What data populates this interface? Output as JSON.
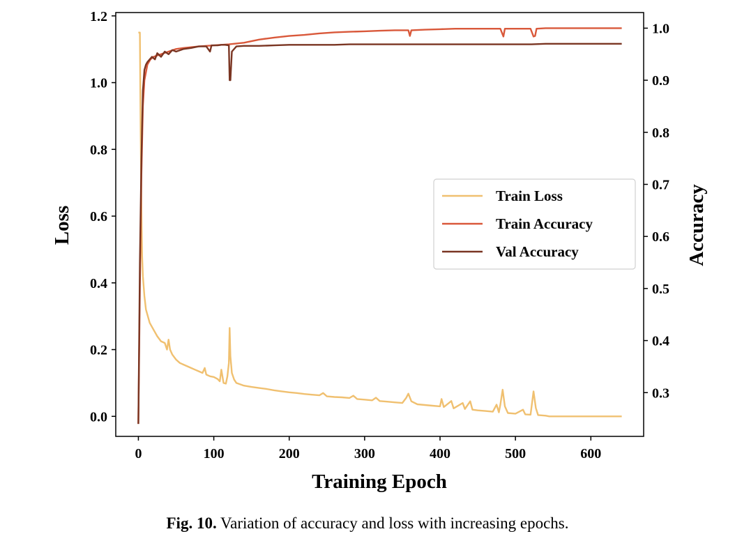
{
  "caption": {
    "label": "Fig. 10.",
    "text": "Variation of accuracy and loss with increasing epochs."
  },
  "chart_data": {
    "type": "line",
    "xlabel": "Training Epoch",
    "ylabel_left": "Loss",
    "ylabel_right": "Accuracy",
    "xlim": [
      -30,
      670
    ],
    "ylim_left": [
      -0.06,
      1.21
    ],
    "ylim_right": [
      0.216,
      1.03
    ],
    "xticks": [
      "0",
      "100",
      "200",
      "300",
      "400",
      "500",
      "600"
    ],
    "yticks_left": [
      "0.0",
      "0.2",
      "0.4",
      "0.6",
      "0.8",
      "1.0",
      "1.2"
    ],
    "yticks_right": [
      "0.3",
      "0.4",
      "0.5",
      "0.6",
      "0.7",
      "0.8",
      "0.9",
      "1.0"
    ],
    "grid": false,
    "legend_position": "center-right",
    "series": [
      {
        "name": "Train Loss",
        "axis": "left",
        "color": "#F0C070",
        "points": [
          [
            0,
            1.15
          ],
          [
            2,
            1.15
          ],
          [
            3,
            0.85
          ],
          [
            4,
            0.62
          ],
          [
            5,
            0.48
          ],
          [
            6,
            0.42
          ],
          [
            8,
            0.36
          ],
          [
            10,
            0.32
          ],
          [
            15,
            0.28
          ],
          [
            20,
            0.26
          ],
          [
            25,
            0.24
          ],
          [
            30,
            0.225
          ],
          [
            35,
            0.22
          ],
          [
            38,
            0.2
          ],
          [
            40,
            0.23
          ],
          [
            42,
            0.2
          ],
          [
            45,
            0.185
          ],
          [
            50,
            0.17
          ],
          [
            55,
            0.16
          ],
          [
            60,
            0.155
          ],
          [
            65,
            0.15
          ],
          [
            70,
            0.145
          ],
          [
            75,
            0.14
          ],
          [
            80,
            0.135
          ],
          [
            85,
            0.13
          ],
          [
            88,
            0.145
          ],
          [
            90,
            0.125
          ],
          [
            95,
            0.12
          ],
          [
            100,
            0.118
          ],
          [
            105,
            0.112
          ],
          [
            108,
            0.105
          ],
          [
            110,
            0.14
          ],
          [
            113,
            0.1
          ],
          [
            116,
            0.098
          ],
          [
            118,
            0.12
          ],
          [
            120,
            0.16
          ],
          [
            121,
            0.265
          ],
          [
            122,
            0.18
          ],
          [
            124,
            0.13
          ],
          [
            127,
            0.11
          ],
          [
            130,
            0.1
          ],
          [
            140,
            0.092
          ],
          [
            150,
            0.088
          ],
          [
            160,
            0.085
          ],
          [
            170,
            0.082
          ],
          [
            180,
            0.078
          ],
          [
            190,
            0.075
          ],
          [
            200,
            0.072
          ],
          [
            210,
            0.07
          ],
          [
            220,
            0.067
          ],
          [
            230,
            0.065
          ],
          [
            240,
            0.063
          ],
          [
            245,
            0.07
          ],
          [
            250,
            0.06
          ],
          [
            260,
            0.058
          ],
          [
            270,
            0.057
          ],
          [
            280,
            0.055
          ],
          [
            285,
            0.062
          ],
          [
            290,
            0.052
          ],
          [
            300,
            0.05
          ],
          [
            310,
            0.048
          ],
          [
            315,
            0.056
          ],
          [
            320,
            0.046
          ],
          [
            330,
            0.044
          ],
          [
            340,
            0.042
          ],
          [
            350,
            0.04
          ],
          [
            355,
            0.055
          ],
          [
            358,
            0.068
          ],
          [
            362,
            0.045
          ],
          [
            370,
            0.036
          ],
          [
            380,
            0.034
          ],
          [
            390,
            0.032
          ],
          [
            400,
            0.03
          ],
          [
            402,
            0.052
          ],
          [
            405,
            0.028
          ],
          [
            415,
            0.046
          ],
          [
            418,
            0.024
          ],
          [
            430,
            0.04
          ],
          [
            433,
            0.022
          ],
          [
            440,
            0.045
          ],
          [
            443,
            0.02
          ],
          [
            450,
            0.018
          ],
          [
            460,
            0.016
          ],
          [
            470,
            0.014
          ],
          [
            475,
            0.035
          ],
          [
            478,
            0.012
          ],
          [
            480,
            0.035
          ],
          [
            483,
            0.08
          ],
          [
            486,
            0.03
          ],
          [
            490,
            0.01
          ],
          [
            500,
            0.008
          ],
          [
            510,
            0.02
          ],
          [
            513,
            0.006
          ],
          [
            520,
            0.005
          ],
          [
            524,
            0.075
          ],
          [
            527,
            0.025
          ],
          [
            530,
            0.004
          ],
          [
            540,
            0.002
          ],
          [
            545,
            0.0
          ],
          [
            600,
            0.0
          ],
          [
            641,
            0.0
          ]
        ]
      },
      {
        "name": "Train Accuracy",
        "axis": "right",
        "color": "#D9583A",
        "points": [
          [
            0,
            0.24
          ],
          [
            2,
            0.5
          ],
          [
            4,
            0.72
          ],
          [
            6,
            0.85
          ],
          [
            8,
            0.9
          ],
          [
            12,
            0.93
          ],
          [
            16,
            0.94
          ],
          [
            20,
            0.945
          ],
          [
            30,
            0.95
          ],
          [
            40,
            0.955
          ],
          [
            50,
            0.96
          ],
          [
            60,
            0.962
          ],
          [
            80,
            0.965
          ],
          [
            100,
            0.967
          ],
          [
            110,
            0.968
          ],
          [
            120,
            0.969
          ],
          [
            140,
            0.972
          ],
          [
            160,
            0.978
          ],
          [
            180,
            0.982
          ],
          [
            200,
            0.985
          ],
          [
            220,
            0.987
          ],
          [
            240,
            0.99
          ],
          [
            260,
            0.992
          ],
          [
            280,
            0.993
          ],
          [
            300,
            0.994
          ],
          [
            320,
            0.995
          ],
          [
            340,
            0.996
          ],
          [
            358,
            0.996
          ],
          [
            360,
            0.985
          ],
          [
            362,
            0.996
          ],
          [
            380,
            0.997
          ],
          [
            400,
            0.998
          ],
          [
            420,
            0.999
          ],
          [
            440,
            0.999
          ],
          [
            460,
            0.999
          ],
          [
            480,
            0.999
          ],
          [
            484,
            0.984
          ],
          [
            486,
            0.999
          ],
          [
            500,
            0.999
          ],
          [
            520,
            0.999
          ],
          [
            524,
            0.984
          ],
          [
            526,
            0.985
          ],
          [
            528,
            0.999
          ],
          [
            540,
            1.0
          ],
          [
            600,
            1.0
          ],
          [
            641,
            1.0
          ]
        ]
      },
      {
        "name": "Val Accuracy",
        "axis": "right",
        "color": "#7A3522",
        "points": [
          [
            0,
            0.24
          ],
          [
            2,
            0.55
          ],
          [
            4,
            0.75
          ],
          [
            6,
            0.88
          ],
          [
            8,
            0.92
          ],
          [
            10,
            0.93
          ],
          [
            12,
            0.935
          ],
          [
            15,
            0.94
          ],
          [
            18,
            0.945
          ],
          [
            22,
            0.94
          ],
          [
            25,
            0.952
          ],
          [
            30,
            0.945
          ],
          [
            35,
            0.955
          ],
          [
            40,
            0.95
          ],
          [
            45,
            0.958
          ],
          [
            50,
            0.955
          ],
          [
            60,
            0.96
          ],
          [
            70,
            0.962
          ],
          [
            80,
            0.965
          ],
          [
            90,
            0.965
          ],
          [
            95,
            0.955
          ],
          [
            97,
            0.967
          ],
          [
            105,
            0.967
          ],
          [
            110,
            0.968
          ],
          [
            115,
            0.968
          ],
          [
            120,
            0.967
          ],
          [
            121,
            0.9
          ],
          [
            122,
            0.9
          ],
          [
            124,
            0.955
          ],
          [
            130,
            0.965
          ],
          [
            140,
            0.966
          ],
          [
            160,
            0.966
          ],
          [
            180,
            0.967
          ],
          [
            200,
            0.968
          ],
          [
            220,
            0.968
          ],
          [
            240,
            0.968
          ],
          [
            260,
            0.968
          ],
          [
            280,
            0.969
          ],
          [
            300,
            0.969
          ],
          [
            320,
            0.969
          ],
          [
            340,
            0.969
          ],
          [
            360,
            0.969
          ],
          [
            380,
            0.969
          ],
          [
            400,
            0.969
          ],
          [
            420,
            0.969
          ],
          [
            440,
            0.969
          ],
          [
            460,
            0.969
          ],
          [
            480,
            0.969
          ],
          [
            500,
            0.969
          ],
          [
            520,
            0.969
          ],
          [
            540,
            0.97
          ],
          [
            560,
            0.97
          ],
          [
            580,
            0.97
          ],
          [
            600,
            0.97
          ],
          [
            620,
            0.97
          ],
          [
            641,
            0.97
          ]
        ]
      }
    ]
  }
}
